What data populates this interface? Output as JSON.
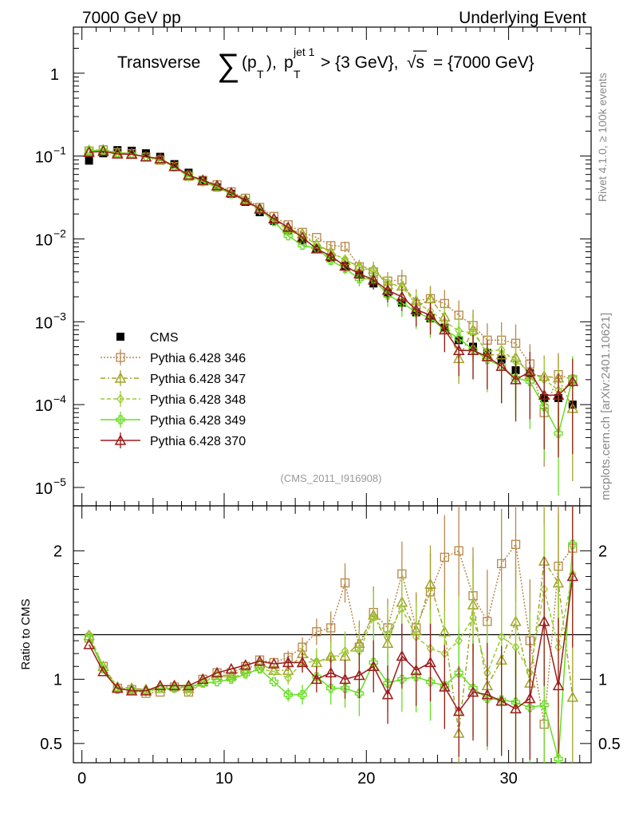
{
  "header": {
    "left": "7000 GeV pp",
    "right": "Underlying Event"
  },
  "title": {
    "prefix": "Transverse",
    "sigma": "∑",
    "pt_open": "(p",
    "pt_sub": "T",
    "pt_close": "),",
    "p2": "p",
    "p2_sup": "jet 1",
    "p2_sub": "T",
    "cut": "> {3 GeV},",
    "sqrt": "√s",
    "energy": "= {7000 GeV}"
  },
  "side_labels": {
    "rivet": "Rivet 4.1.0, ≥ 100k events",
    "mcplots": "mcplots.cern.ch [arXiv:2401.10621]"
  },
  "analysis_id": "(CMS_2011_I916908)",
  "chart_data": [
    {
      "type": "scatter",
      "panel": "main",
      "yscale": "log",
      "xlim": [
        -0.6,
        35.8
      ],
      "ylim": [
        6e-06,
        3.6
      ],
      "yticks": [
        {
          "value": 1e-05,
          "base": "10",
          "exp": "−5"
        },
        {
          "value": 0.0001,
          "base": "10",
          "exp": "−4"
        },
        {
          "value": 0.001,
          "base": "10",
          "exp": "−3"
        },
        {
          "value": 0.01,
          "base": "10",
          "exp": "−2"
        },
        {
          "value": 0.1,
          "base": "10",
          "exp": "−1"
        },
        {
          "value": 1,
          "base": "1",
          "exp": ""
        }
      ],
      "x": [
        0.5,
        1.5,
        2.5,
        3.5,
        4.5,
        5.5,
        6.5,
        7.5,
        8.5,
        9.5,
        10.5,
        11.5,
        12.5,
        13.5,
        14.5,
        15.5,
        16.5,
        17.5,
        18.5,
        19.5,
        20.5,
        21.5,
        22.5,
        23.5,
        24.5,
        25.5,
        26.5,
        27.5,
        28.5,
        29.5,
        30.5,
        31.5,
        32.5,
        33.5,
        34.5
      ],
      "legend": [
        {
          "name": "CMS",
          "key": "cms"
        },
        {
          "name": "Pythia 6.428 346",
          "key": "p346"
        },
        {
          "name": "Pythia 6.428 347",
          "key": "p347"
        },
        {
          "name": "Pythia 6.428 348",
          "key": "p348"
        },
        {
          "name": "Pythia 6.428 349",
          "key": "p349"
        },
        {
          "name": "Pythia 6.428 370",
          "key": "p370"
        }
      ],
      "series": [
        {
          "key": "cms",
          "name": "CMS",
          "color": "#000000",
          "marker": "square-filled",
          "values": [
            0.088,
            0.108,
            0.118,
            0.116,
            0.108,
            0.098,
            0.08,
            0.063,
            0.051,
            0.042,
            0.035,
            0.028,
            0.021,
            0.0165,
            0.0125,
            0.0096,
            0.0076,
            0.0059,
            0.0047,
            0.0037,
            0.0029,
            0.0022,
            0.0017,
            0.0013,
            0.0011,
            0.00085,
            0.0006,
            0.0005,
            0.00042,
            0.00035,
            0.00026,
            0.00024,
            0.00012,
            0.00012,
            0.0001
          ]
        },
        {
          "key": "p346",
          "name": "Pythia 6.428 346",
          "color": "#b8874a",
          "marker": "square-open",
          "dash": "2,2",
          "values": [
            0.115,
            0.119,
            0.11,
            0.107,
            0.097,
            0.089,
            0.075,
            0.057,
            0.051,
            0.045,
            0.037,
            0.031,
            0.024,
            0.0187,
            0.0148,
            0.012,
            0.0104,
            0.0083,
            0.0081,
            0.0046,
            0.004,
            0.0031,
            0.0032,
            0.0015,
            0.0019,
            0.00166,
            0.0012,
            0.0009,
            0.0006,
            0.0006,
            0.00055,
            0.00031,
            8e-05,
            0.00023,
            0.0002
          ]
        },
        {
          "key": "p347",
          "name": "Pythia 6.428 347",
          "color": "#a3a32a",
          "marker": "triangle-open",
          "dash": "6,3,2,3",
          "values": [
            0.117,
            0.119,
            0.11,
            0.107,
            0.098,
            0.091,
            0.075,
            0.058,
            0.05,
            0.043,
            0.036,
            0.03,
            0.023,
            0.0175,
            0.0133,
            0.0115,
            0.0086,
            0.007,
            0.0055,
            0.0047,
            0.0043,
            0.0028,
            0.0027,
            0.0018,
            0.0019,
            0.00115,
            0.00036,
            0.0008,
            0.0004,
            0.0004,
            0.00037,
            0.00023,
            0.00022,
            0.00021,
            9e-05
          ]
        },
        {
          "key": "p348",
          "name": "Pythia 6.428 348",
          "color": "#9acd32",
          "marker": "diamond-open",
          "dash": "5,3",
          "values": [
            0.117,
            0.118,
            0.109,
            0.106,
            0.097,
            0.091,
            0.074,
            0.056,
            0.049,
            0.043,
            0.035,
            0.029,
            0.022,
            0.0172,
            0.0126,
            0.0108,
            0.0086,
            0.0068,
            0.0057,
            0.0045,
            0.0042,
            0.003,
            0.0026,
            0.0017,
            0.00135,
            0.001,
            0.00078,
            0.00073,
            0.00044,
            0.00046,
            0.00033,
            0.00025,
            0.0002,
            0.00015,
            0.00018
          ]
        },
        {
          "key": "p349",
          "name": "Pythia 6.428 349",
          "color": "#66dd22",
          "marker": "cross-open",
          "dash": "",
          "values": [
            0.116,
            0.117,
            0.108,
            0.106,
            0.098,
            0.091,
            0.074,
            0.059,
            0.049,
            0.042,
            0.035,
            0.029,
            0.023,
            0.0162,
            0.0109,
            0.0084,
            0.0077,
            0.0055,
            0.0044,
            0.0033,
            0.0033,
            0.0021,
            0.0017,
            0.0013,
            0.0011,
            0.0008,
            0.00063,
            0.00046,
            0.00035,
            0.00029,
            0.00021,
            0.00019,
            9.5e-05,
            4.5e-05,
            0.000205
          ]
        },
        {
          "key": "p370",
          "name": "Pythia 6.428 370",
          "color": "#9b1b1b",
          "marker": "triangle-open",
          "dash": "",
          "values": [
            0.111,
            0.114,
            0.106,
            0.105,
            0.098,
            0.093,
            0.075,
            0.059,
            0.051,
            0.044,
            0.036,
            0.029,
            0.023,
            0.0175,
            0.0138,
            0.0104,
            0.0076,
            0.0062,
            0.0047,
            0.0038,
            0.0032,
            0.0024,
            0.002,
            0.0014,
            0.0012,
            0.0008,
            0.00045,
            0.00045,
            0.00038,
            0.00029,
            0.0002,
            0.00025,
            0.00013,
            0.00013,
            0.00019
          ]
        }
      ]
    },
    {
      "type": "line",
      "panel": "ratio",
      "ylabel": "Ratio to CMS",
      "xlabel": "",
      "ylim": [
        0.35,
        2.35
      ],
      "yticks": [
        {
          "value": 0.5,
          "label": "0.5"
        },
        {
          "value": 1,
          "label": "1"
        },
        {
          "value": 2,
          "label": "2"
        }
      ],
      "xticks": [
        {
          "value": 0,
          "label": "0"
        },
        {
          "value": 10,
          "label": "10"
        },
        {
          "value": 20,
          "label": "20"
        },
        {
          "value": 30,
          "label": "30"
        }
      ],
      "x": [
        0.5,
        1.5,
        2.5,
        3.5,
        4.5,
        5.5,
        6.5,
        7.5,
        8.5,
        9.5,
        10.5,
        11.5,
        12.5,
        13.5,
        14.5,
        15.5,
        16.5,
        17.5,
        18.5,
        19.5,
        20.5,
        21.5,
        22.5,
        23.5,
        24.5,
        25.5,
        26.5,
        27.5,
        28.5,
        29.5,
        30.5,
        31.5,
        32.5,
        33.5,
        34.5
      ],
      "series": [
        {
          "key": "p346",
          "name": "Pythia 6.428 346",
          "color": "#b8874a",
          "marker": "square-open",
          "dash": "2,2",
          "values": [
            1.32,
            1.1,
            0.93,
            0.92,
            0.89,
            0.9,
            0.94,
            0.9,
            1.0,
            1.05,
            1.05,
            1.1,
            1.15,
            1.13,
            1.17,
            1.25,
            1.37,
            1.4,
            1.75,
            1.25,
            1.52,
            1.4,
            1.82,
            1.4,
            1.68,
            1.95,
            2.0,
            1.65,
            1.45,
            1.9,
            2.05,
            1.3,
            0.65,
            1.88,
            2.02
          ]
        },
        {
          "key": "p347",
          "name": "Pythia 6.428 347",
          "color": "#a3a32a",
          "marker": "triangle-open",
          "dash": "6,3,2,3",
          "values": [
            1.34,
            1.1,
            0.94,
            0.93,
            0.92,
            0.93,
            0.95,
            0.93,
            0.98,
            1.03,
            1.03,
            1.08,
            1.12,
            1.07,
            1.07,
            1.2,
            1.13,
            1.18,
            1.18,
            1.28,
            1.5,
            1.28,
            1.6,
            1.38,
            1.74,
            1.37,
            0.58,
            1.58,
            0.95,
            1.15,
            1.45,
            0.97,
            1.92,
            1.75,
            0.86
          ]
        },
        {
          "key": "p348",
          "name": "Pythia 6.428 348",
          "color": "#9acd32",
          "marker": "diamond-open",
          "dash": "5,3",
          "values": [
            1.35,
            1.1,
            0.93,
            0.92,
            0.9,
            0.93,
            0.93,
            0.9,
            0.97,
            1.03,
            1.01,
            1.05,
            1.08,
            1.06,
            1.01,
            1.13,
            1.14,
            1.16,
            1.22,
            1.22,
            1.48,
            1.35,
            1.55,
            1.33,
            1.24,
            1.2,
            1.3,
            1.48,
            1.05,
            1.33,
            1.25,
            1.05,
            1.7,
            1.25,
            1.82
          ]
        },
        {
          "key": "p349",
          "name": "Pythia 6.428 349",
          "color": "#66dd22",
          "marker": "cross-open",
          "dash": "",
          "values": [
            1.32,
            1.08,
            0.92,
            0.92,
            0.91,
            0.93,
            0.93,
            0.94,
            0.97,
            0.98,
            1.0,
            1.04,
            1.08,
            0.98,
            0.88,
            0.88,
            1.02,
            0.93,
            0.93,
            0.89,
            1.13,
            0.97,
            1.0,
            1.02,
            0.98,
            0.95,
            1.05,
            0.93,
            0.85,
            0.84,
            0.82,
            0.78,
            0.8,
            0.38,
            2.05
          ]
        },
        {
          "key": "p370",
          "name": "Pythia 6.428 370",
          "color": "#9b1b1b",
          "marker": "triangle-open",
          "dash": "",
          "values": [
            1.27,
            1.06,
            0.93,
            0.91,
            0.91,
            0.95,
            0.95,
            0.95,
            1.0,
            1.05,
            1.08,
            1.11,
            1.14,
            1.12,
            1.13,
            1.13,
            1.0,
            1.05,
            1.0,
            1.03,
            1.1,
            0.88,
            1.18,
            1.07,
            1.13,
            0.94,
            0.75,
            0.9,
            0.88,
            0.83,
            0.77,
            0.85,
            1.45,
            0.95,
            1.8
          ]
        }
      ]
    }
  ]
}
